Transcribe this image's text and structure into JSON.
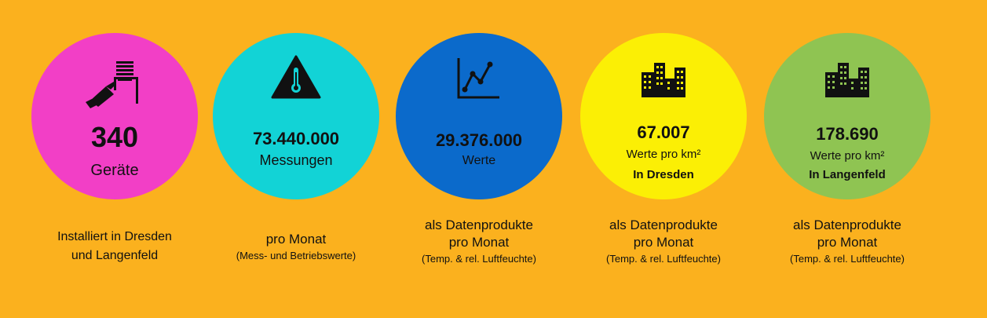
{
  "stats": [
    {
      "value": "340",
      "unit": "Geräte",
      "circle_color": "#F23FC6",
      "icon": "sensor-device-icon",
      "caption": [
        "Installiert in Dresden",
        "und Langenfeld"
      ],
      "caption_small": ""
    },
    {
      "value": "73.440.000",
      "unit": "Messungen",
      "circle_color": "#12D3D6",
      "icon": "thermometer-warning-icon",
      "caption": [
        "pro Monat"
      ],
      "caption_small": "(Mess- und Betriebswerte)"
    },
    {
      "value": "29.376.000",
      "unit": "Werte",
      "circle_color": "#0B6ACB",
      "icon": "line-chart-icon",
      "caption": [
        "als Datenprodukte",
        "pro Monat"
      ],
      "caption_small": "(Temp. & rel. Luftfeuchte)"
    },
    {
      "value": "67.007",
      "unit": "Werte pro km²",
      "location": "In Dresden",
      "circle_color": "#FBEF05",
      "icon": "city-buildings-icon",
      "caption": [
        "als Datenprodukte",
        "pro Monat"
      ],
      "caption_small": "(Temp. & rel. Luftfeuchte)"
    },
    {
      "value": "178.690",
      "unit": "Werte pro km²",
      "location": "In Langenfeld",
      "circle_color": "#8FC452",
      "icon": "city-buildings-icon",
      "caption": [
        "als Datenprodukte",
        "pro Monat"
      ],
      "caption_small": "(Temp. & rel. Luftfeuchte)"
    }
  ]
}
